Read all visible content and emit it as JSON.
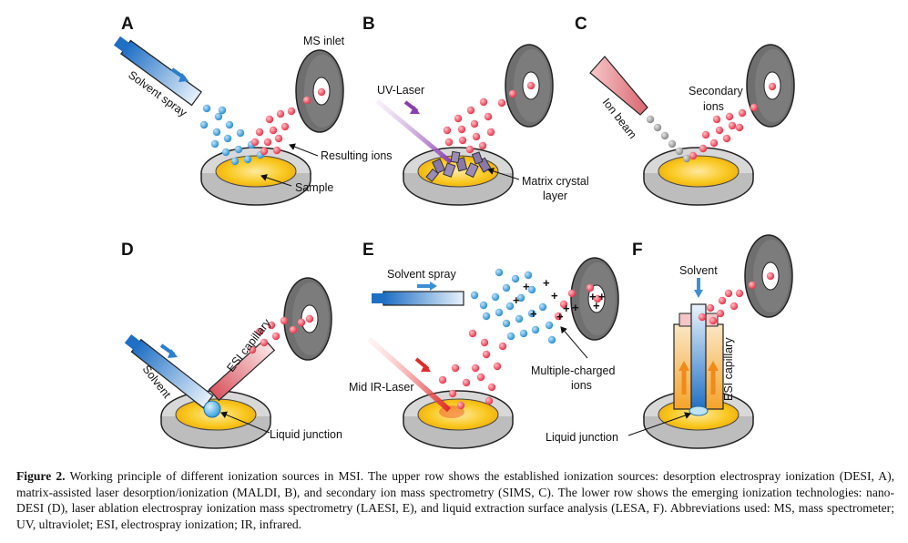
{
  "panels": {
    "A": {
      "letter": "A",
      "solvent_spray": "Solvent spray",
      "ms_inlet": "MS inlet",
      "resulting_ions": "Resulting ions",
      "sample": "Sample"
    },
    "B": {
      "letter": "B",
      "uv_laser": "UV-Laser",
      "matrix_line1": "Matrix crystal",
      "matrix_line2": "layer"
    },
    "C": {
      "letter": "C",
      "ion_beam": "Ion beam",
      "secondary_line1": "Secondary",
      "secondary_line2": "ions"
    },
    "D": {
      "letter": "D",
      "solvent": "Solvent",
      "esi_capillary": "ESI capillary",
      "liquid_junction": "Liquid junction"
    },
    "E": {
      "letter": "E",
      "solvent_spray": "Solvent spray",
      "mid_ir_laser": "Mid IR-Laser",
      "multiple_line1": "Multiple-charged",
      "multiple_line2": "ions"
    },
    "F": {
      "letter": "F",
      "solvent": "Solvent",
      "esi_capillary": "ESI capillary",
      "liquid_junction": "Liquid junction"
    }
  },
  "caption": {
    "figure_label": "Figure 2.",
    "text": "Working principle of different ionization sources in MSI. The upper row shows the established ionization sources: desorption electrospray ionization (DESI, A), matrix-assisted laser desorption/ionization (MALDI, B), and secondary ion mass spectrometry (SIMS, C). The lower row shows the emerging ionization technologies: nano-DESI (D), laser ablation electrospray ionization mass spectrometry (LAESI, E), and liquid extraction surface analysis (LESA, F). Abbreviations used: MS, mass spectrometer; UV, ultraviolet; ESI, electrospray ionization; IR, infrared."
  },
  "colors": {
    "ion_red": "#e8344a",
    "ion_blue": "#2a8fd0",
    "inlet_gray": "#6b6b6b",
    "sample_yellow": "#f7c21c",
    "dish_gray": "#d4d4d4",
    "beam_pink": "#e9a3a6",
    "laser_purple": "#8a3fb0",
    "laser_red": "#e02a2a"
  }
}
